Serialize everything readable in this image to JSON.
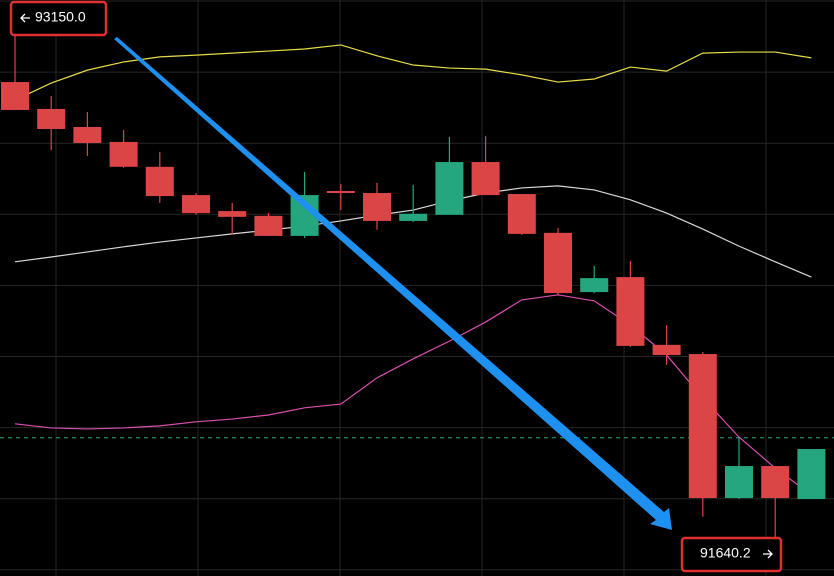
{
  "chart_data": {
    "type": "candlestick",
    "ylim": [
      91552,
      93244
    ],
    "grid": true,
    "up_color": "#26a67f",
    "down_color": "#dc4545",
    "open": [
      93003,
      92924,
      92871,
      92827,
      92754,
      92671,
      92624,
      92610,
      92551,
      92683,
      92677,
      92595,
      92613,
      92768,
      92674,
      92560,
      92386,
      92430,
      92231,
      92204,
      91781,
      91875,
      91778
    ],
    "close": [
      92921,
      92865,
      92824,
      92754,
      92668,
      92618,
      92607,
      92551,
      92671,
      92677,
      92595,
      92616,
      92768,
      92671,
      92557,
      92383,
      92427,
      92228,
      92201,
      91781,
      91875,
      91781,
      91925
    ],
    "high": [
      93150,
      92962,
      92915,
      92862,
      92798,
      92677,
      92648,
      92618,
      92739,
      92704,
      92707,
      92701,
      92842,
      92845,
      92674,
      92574,
      92463,
      92477,
      92289,
      92210,
      91958,
      91875,
      91925
    ],
    "low": [
      92921,
      92803,
      92786,
      92751,
      92648,
      92613,
      92554,
      92551,
      92545,
      92627,
      92569,
      92592,
      92613,
      92671,
      92554,
      92375,
      92383,
      92225,
      92172,
      91726,
      91778,
      91640.2,
      91778
    ],
    "overlays": [
      {
        "color": "#e8dc4a",
        "values": [
          92950,
          93000,
          93038,
          93062,
          93077,
          93082,
          93088,
          93094,
          93100,
          93112,
          93080,
          93053,
          93044,
          93041,
          93024,
          93003,
          93012,
          93047,
          93035,
          93088,
          93091,
          93091,
          93074
        ]
      },
      {
        "color": "#d9d9d9",
        "values": [
          92475,
          92489,
          92504,
          92519,
          92533,
          92545,
          92557,
          92568,
          92580,
          92595,
          92612,
          92627,
          92654,
          92677,
          92692,
          92698,
          92686,
          92657,
          92618,
          92571,
          92521,
          92475,
          92430
        ]
      },
      {
        "color": "#d94fb0",
        "values": [
          91999,
          91987,
          91984,
          91987,
          91993,
          92005,
          92013,
          92025,
          92046,
          92057,
          92134,
          92190,
          92242,
          92298,
          92363,
          92378,
          92360,
          92289,
          92201,
          92075,
          91960,
          91869,
          91790
        ]
      }
    ],
    "price_line": 91958,
    "max_marker": {
      "value": 93150,
      "label": "93150.0"
    },
    "min_marker": 91640.2
  }
}
